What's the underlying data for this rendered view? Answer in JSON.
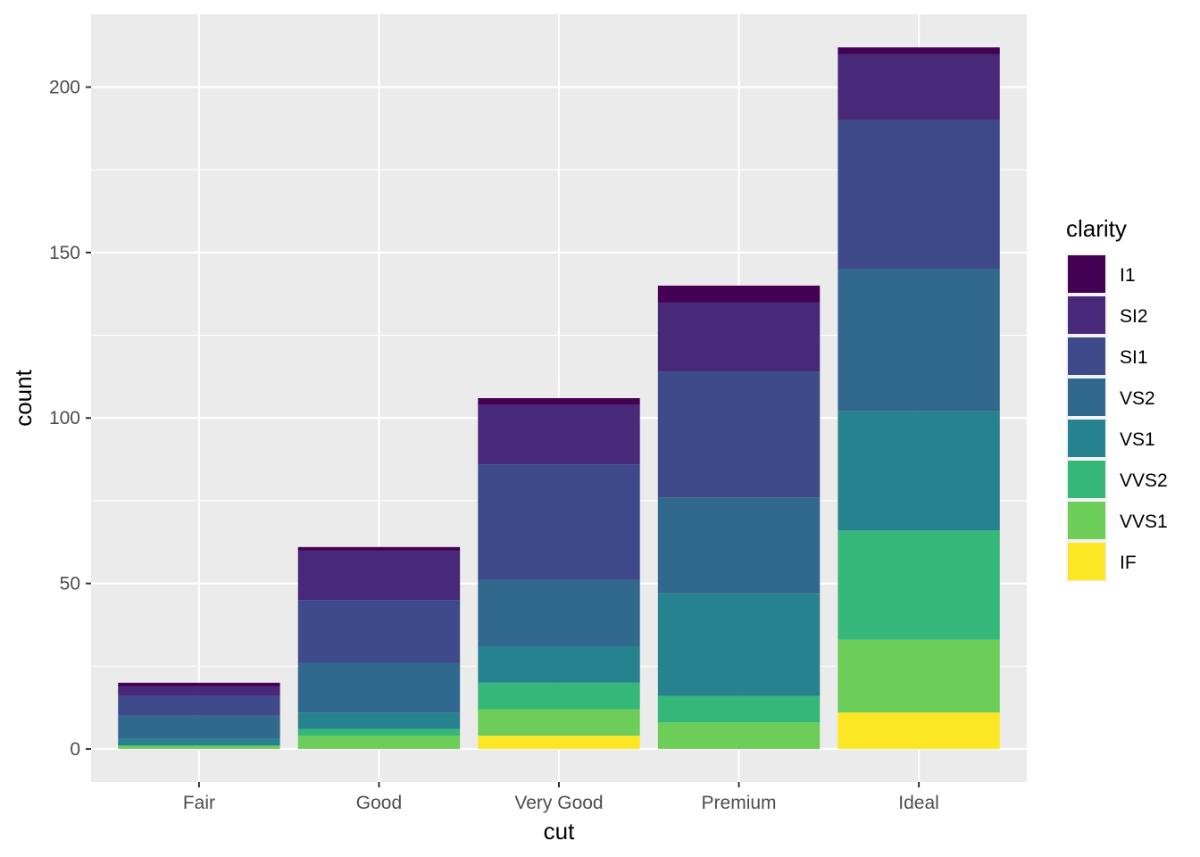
{
  "chart_data": {
    "type": "bar",
    "stacked": true,
    "xlabel": "cut",
    "ylabel": "count",
    "categories": [
      "Fair",
      "Good",
      "Very Good",
      "Premium",
      "Ideal"
    ],
    "ylim": [
      -10,
      222
    ],
    "yticks": [
      0,
      50,
      100,
      150,
      200
    ],
    "grid": true,
    "legend": {
      "title": "clarity",
      "placement": "right"
    },
    "series": [
      {
        "name": "I1",
        "color": "#440154",
        "values": [
          1,
          1,
          2,
          5,
          2
        ]
      },
      {
        "name": "SI2",
        "color": "#482878",
        "values": [
          3,
          15,
          18,
          21,
          20
        ]
      },
      {
        "name": "SI1",
        "color": "#3E4A89",
        "values": [
          6,
          19,
          35,
          38,
          45
        ]
      },
      {
        "name": "VS2",
        "color": "#31688E",
        "values": [
          7,
          15,
          20,
          29,
          43
        ]
      },
      {
        "name": "VS1",
        "color": "#26828E",
        "values": [
          2,
          5,
          11,
          31,
          36
        ]
      },
      {
        "name": "VVS2",
        "color": "#35B779",
        "values": [
          0,
          2,
          8,
          8,
          33
        ]
      },
      {
        "name": "VVS1",
        "color": "#6DCD59",
        "values": [
          1,
          4,
          8,
          8,
          22
        ]
      },
      {
        "name": "IF",
        "color": "#FDE725",
        "values": [
          0,
          0,
          4,
          0,
          11
        ]
      }
    ]
  }
}
